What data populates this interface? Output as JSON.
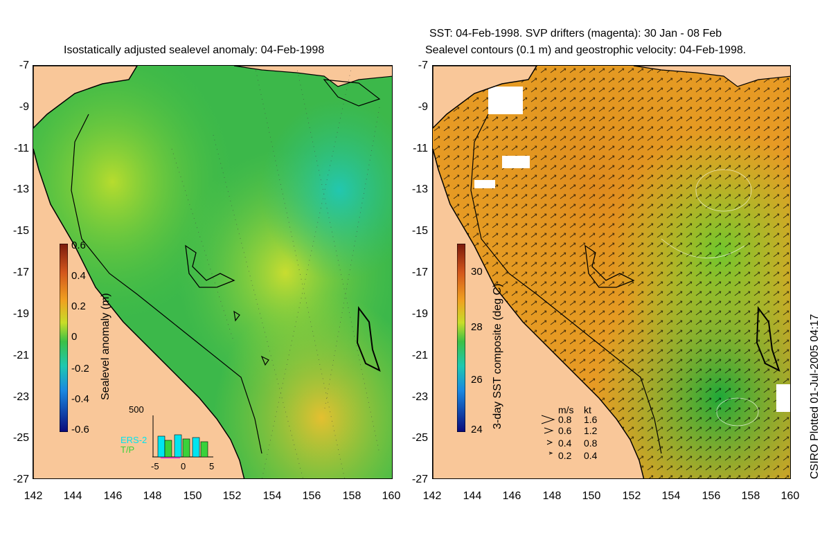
{
  "titles": {
    "left": "Isostatically adjusted sealevel anomaly: 04-Feb-1998",
    "right_line1": "SST: 04-Feb-1998. SVP drifters (magenta): 30 Jan - 08 Feb",
    "right_line2": "Sealevel contours (0.1 m) and geostrophic velocity: 04-Feb-1998."
  },
  "axes": {
    "y_labels": [
      "-7",
      "-9",
      "-11",
      "-13",
      "-15",
      "-17",
      "-19",
      "-21",
      "-23",
      "-25",
      "-27"
    ],
    "x_labels": [
      "142",
      "144",
      "146",
      "148",
      "150",
      "152",
      "154",
      "156",
      "158",
      "160"
    ]
  },
  "left_colorbar": {
    "title": "Sealevel anomaly (m)",
    "labels": [
      "0.6",
      "0.4",
      "0.2",
      "0",
      "-0.2",
      "-0.4",
      "-0.6"
    ]
  },
  "right_colorbar": {
    "title": "3-day SST composite (deg C)",
    "labels": [
      "30",
      "28",
      "26",
      "24"
    ]
  },
  "histogram": {
    "max_label": "500",
    "series1": "ERS-2",
    "series2": "T/P",
    "x_labels": [
      "-5",
      "0",
      "5"
    ]
  },
  "velocity_legend": {
    "header_ms": "m/s",
    "header_kt": "kt",
    "rows": [
      {
        "ms": "0.8",
        "kt": "1.6"
      },
      {
        "ms": "0.6",
        "kt": "1.2"
      },
      {
        "ms": "0.4",
        "kt": "0.8"
      },
      {
        "ms": "0.2",
        "kt": "0.4"
      }
    ]
  },
  "credit": "CSIRO Plotted 01-Jul-2005 04:17",
  "colors": {
    "land": "#f9c799",
    "sea_green": "#3cb84a",
    "sst_orange": "#e8841c",
    "sst_yellow": "#d9d62a",
    "ers2": "#00e5f0",
    "tp": "#39d23a",
    "drifter": "#ff00ff"
  }
}
